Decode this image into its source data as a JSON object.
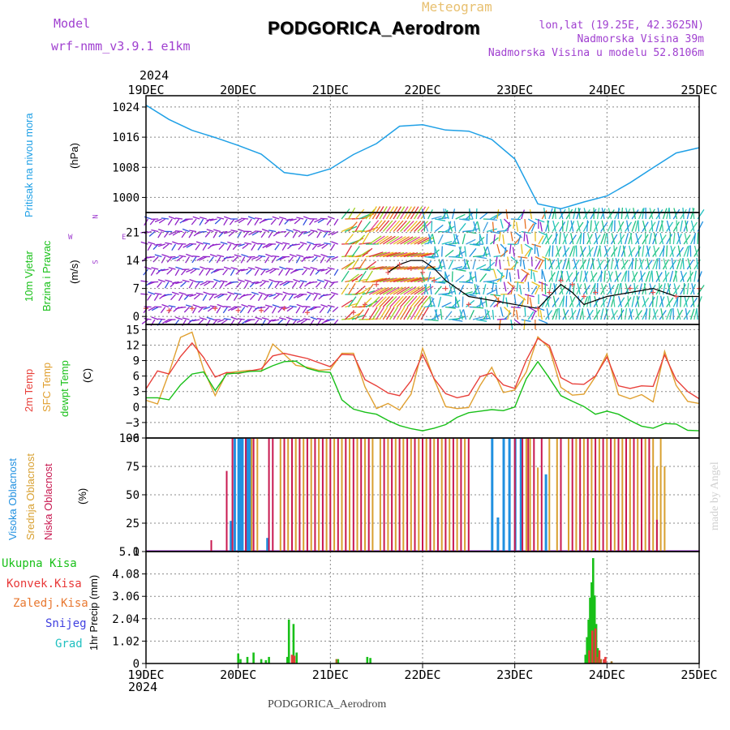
{
  "header": {
    "model_label": "Model",
    "model_value": "wrf-nmm_v3.9.1  e1km",
    "product": "Meteogram",
    "station": "PODGORICA_Aerodrom",
    "lonlat": "lon,lat (19.25E, 42.3625N)",
    "elevation": "Nadmorska Visina 39m",
    "model_elevation": "Nadmorska Visina u modelu 52.8106m"
  },
  "footer": {
    "station": "PODGORICA_Aerodrom"
  },
  "credit": "made by Angel",
  "colors": {
    "pressure": "#1fa0e6",
    "temp2m": "#e8403a",
    "tsfc": "#e0a030",
    "dewpt": "#18c018",
    "cloud_high": "#2090e0",
    "cloud_mid": "#d8a030",
    "cloud_low": "#c81850",
    "precip_total": "#18c018",
    "precip_conv": "#e83838",
    "precip_frozen": "#e87830",
    "precip_snow": "#4040e0",
    "precip_hail": "#20c0c0",
    "model_purple": "#a040d0"
  },
  "chart_data": [
    {
      "type": "line",
      "id": "pressure",
      "ylabel_title": "Pritisak na nivou mora",
      "ylabel_unit": "(hPa)",
      "year": "2024",
      "x_ticks": [
        "19DEC",
        "20DEC",
        "21DEC",
        "22DEC",
        "23DEC",
        "24DEC",
        "25DEC"
      ],
      "ylim": [
        996,
        1027
      ],
      "y_ticks": [
        1000,
        1008,
        1016,
        1024
      ],
      "x_hours": [
        0,
        6,
        12,
        18,
        24,
        30,
        36,
        42,
        48,
        54,
        60,
        66,
        72,
        78,
        84,
        90,
        96,
        102,
        108,
        114,
        120,
        126,
        132,
        138,
        144
      ],
      "values": [
        1024.5,
        1020.7,
        1017.8,
        1015.9,
        1013.8,
        1011.5,
        1006.6,
        1005.8,
        1007.6,
        1011.4,
        1014.3,
        1018.9,
        1019.3,
        1017.9,
        1017.6,
        1015.4,
        1010.2,
        998.3,
        997.0,
        998.8,
        1000.4,
        1003.9,
        1007.9,
        1011.8,
        1013.2
      ]
    },
    {
      "type": "line",
      "id": "wind",
      "ylabel_title": "10m Vjetar",
      "ylabel_title2": "Brzina i Pravac",
      "ylabel_unit": "(m/s)",
      "compass": [
        "N",
        "E",
        "S",
        "W"
      ],
      "ylim": [
        -2,
        26
      ],
      "y_ticks": [
        0,
        7,
        14,
        21
      ],
      "series": [
        {
          "name": "speed",
          "x_hours": [
            63,
            66,
            69,
            72,
            75,
            78,
            81,
            84,
            90,
            96,
            102,
            105,
            108,
            111,
            114,
            117,
            120,
            126,
            132,
            138,
            144
          ],
          "values": [
            11,
            13,
            14,
            14,
            12,
            9,
            7,
            5,
            4,
            3,
            2,
            5,
            8,
            6,
            3,
            4,
            5,
            6,
            7,
            5,
            5
          ]
        }
      ],
      "gust_x_hours": [
        0,
        6,
        12,
        18,
        24,
        30,
        36,
        42,
        54,
        57,
        60,
        63,
        66,
        69,
        72,
        75,
        78,
        84,
        102,
        105,
        108,
        111,
        114,
        117,
        126,
        132,
        138,
        144
      ],
      "gust_values": [
        2,
        1.5,
        2,
        2,
        1.5,
        1.5,
        2,
        1,
        1,
        3,
        8,
        11,
        13,
        12,
        11,
        9,
        7,
        3,
        2,
        6,
        9,
        8,
        5,
        6,
        7,
        6,
        5,
        7
      ]
    },
    {
      "type": "line",
      "id": "temperature",
      "ylabel_lines": [
        "2m Temp",
        "SFC Temp",
        "dewpt Temp"
      ],
      "ylabel_unit": "(C)",
      "ylim": [
        -6,
        16
      ],
      "y_ticks": [
        -6,
        -3,
        0,
        3,
        6,
        9,
        12,
        15
      ],
      "x_hours": [
        0,
        3,
        6,
        9,
        12,
        15,
        18,
        21,
        24,
        27,
        30,
        33,
        36,
        39,
        42,
        45,
        48,
        51,
        54,
        57,
        60,
        63,
        66,
        69,
        72,
        75,
        78,
        81,
        84,
        87,
        90,
        93,
        96,
        99,
        102,
        105,
        108,
        111,
        114,
        117,
        120,
        123,
        126,
        129,
        132,
        135,
        138,
        141,
        144
      ],
      "series": [
        {
          "name": "2m Temp",
          "values": [
            3.5,
            7.0,
            6.4,
            9.8,
            12.4,
            9.6,
            5.8,
            6.7,
            6.5,
            7.0,
            7.4,
            9.9,
            10.4,
            9.9,
            9.4,
            8.6,
            7.8,
            10.2,
            10.1,
            5.3,
            4.1,
            2.7,
            2.2,
            5.1,
            10.2,
            5.5,
            2.6,
            1.8,
            2.3,
            5.9,
            6.6,
            4.3,
            3.6,
            9.1,
            13.3,
            11.9,
            5.7,
            4.5,
            4.4,
            6.0,
            9.7,
            4.1,
            3.6,
            4.1,
            4.0,
            10.1,
            5.3,
            3.0,
            1.6
          ]
        },
        {
          "name": "SFC Temp",
          "values": [
            1.3,
            0.6,
            6.6,
            13.5,
            14.5,
            7.3,
            2.2,
            6.6,
            6.9,
            7.1,
            6.9,
            12.2,
            10.2,
            8.1,
            7.7,
            7.1,
            7.3,
            10.4,
            10.4,
            3.9,
            -0.3,
            0.7,
            -0.6,
            2.5,
            11.4,
            5.4,
            0.1,
            -0.3,
            -0.1,
            4.2,
            7.7,
            2.8,
            3.3,
            6.8,
            13.6,
            11.4,
            3.8,
            2.3,
            2.5,
            5.9,
            10.3,
            2.4,
            1.6,
            2.4,
            1.0,
            10.8,
            4.2,
            1.1,
            0.7
          ]
        },
        {
          "name": "dewpt Temp",
          "values": [
            1.8,
            1.8,
            1.4,
            4.3,
            6.4,
            6.8,
            3.2,
            6.4,
            6.6,
            6.9,
            7.0,
            8.0,
            8.8,
            8.9,
            7.5,
            6.9,
            6.7,
            1.4,
            -0.4,
            -1.0,
            -1.4,
            -2.6,
            -3.6,
            -4.2,
            -4.6,
            -4.1,
            -3.4,
            -2.0,
            -1.1,
            -0.8,
            -0.5,
            -0.7,
            0.0,
            5.5,
            8.8,
            5.6,
            2.2,
            1.1,
            0.1,
            -1.4,
            -0.8,
            -1.4,
            -2.6,
            -3.7,
            -4.1,
            -3.2,
            -3.3,
            -4.5,
            -4.6
          ]
        }
      ]
    },
    {
      "type": "bar",
      "id": "clouds",
      "ylabel_lines": [
        "Visoka Oblacnost",
        "Srednja Oblacnost",
        "Niska Oblacnost"
      ],
      "ylabel_unit": "(%)",
      "ylim": [
        0,
        100
      ],
      "y_ticks": [
        0,
        25,
        50,
        75,
        100
      ],
      "series": [
        {
          "name": "Visoka Oblacnost",
          "x_hours": [
            22,
            23,
            24,
            24.5,
            25,
            26,
            26.5,
            27,
            31.5,
            90,
            91.5,
            93,
            94.5,
            96,
            97.5,
            104
          ],
          "values": [
            27,
            100,
            100,
            100,
            100,
            100,
            100,
            100,
            12,
            100,
            30,
            100,
            100,
            100,
            100,
            68
          ]
        },
        {
          "name": "Srednja Oblacnost",
          "x_hours": [
            27.5,
            29,
            35,
            37,
            39,
            41,
            43,
            45,
            47,
            49,
            51,
            53,
            55,
            57,
            59,
            61,
            63,
            65,
            67,
            69,
            71,
            73,
            75,
            77,
            79,
            81,
            83,
            99,
            100,
            102,
            105,
            107,
            110,
            112,
            114,
            116,
            118,
            120,
            122,
            124,
            126,
            128,
            130,
            132,
            133,
            134,
            135
          ],
          "values": [
            100,
            100,
            100,
            100,
            100,
            100,
            100,
            100,
            100,
            100,
            100,
            100,
            100,
            100,
            100,
            100,
            100,
            100,
            100,
            100,
            100,
            100,
            100,
            100,
            100,
            100,
            100,
            100,
            100,
            74,
            100,
            100,
            100,
            100,
            100,
            100,
            100,
            100,
            100,
            100,
            100,
            100,
            100,
            100,
            75,
            100,
            75
          ]
        },
        {
          "name": "Niska Oblacnost",
          "x_hours": [
            17,
            21,
            22.5,
            26,
            28,
            32,
            33,
            36,
            38,
            40,
            42,
            44,
            46,
            48,
            50,
            52,
            54,
            56,
            58,
            62,
            64,
            66,
            68,
            70,
            72,
            74,
            76,
            78,
            80,
            82,
            84,
            96,
            98,
            99.5,
            101,
            103,
            108,
            111,
            113,
            115,
            117,
            119,
            121,
            123,
            125,
            127,
            129,
            131,
            133
          ],
          "values": [
            10,
            71,
            100,
            100,
            100,
            100,
            100,
            100,
            100,
            100,
            100,
            100,
            100,
            100,
            100,
            100,
            100,
            100,
            100,
            100,
            100,
            100,
            100,
            100,
            100,
            100,
            100,
            100,
            100,
            100,
            100,
            100,
            100,
            100,
            100,
            100,
            100,
            100,
            100,
            100,
            100,
            100,
            100,
            100,
            100,
            100,
            100,
            100,
            28
          ]
        }
      ]
    },
    {
      "type": "bar",
      "id": "precip",
      "ylabel_legend": [
        "Ukupna Kisa",
        "Konvek.Kisa",
        "Zaledj.Kisa",
        "Snijeg",
        "Grad"
      ],
      "ylabel_unit": "1hr Precip (mm)",
      "ylim": [
        0,
        5.1
      ],
      "y_ticks": [
        0,
        1.02,
        2.04,
        3.06,
        4.08,
        5.1
      ],
      "series": [
        {
          "name": "Ukupna Kisa",
          "x_hours": [
            24,
            24.6,
            26.4,
            28,
            30,
            31.2,
            32,
            36.8,
            37.2,
            38.4,
            39.2,
            50,
            57.6,
            58.4,
            114.4,
            114.8,
            115.2,
            115.6,
            116,
            116.4,
            116.8,
            117.2,
            117.6
          ],
          "values": [
            0.45,
            0.2,
            0.3,
            0.5,
            0.2,
            0.15,
            0.3,
            0.3,
            2.0,
            1.8,
            0.5,
            0.2,
            0.3,
            0.25,
            0.4,
            1.2,
            2.0,
            3.0,
            3.7,
            4.8,
            3.1,
            1.8,
            0.7
          ]
        },
        {
          "name": "Konvek.Kisa",
          "x_hours": [
            38,
            38.6,
            115.4,
            116.2,
            117,
            118,
            119.2,
            119.6
          ],
          "values": [
            0.4,
            0.35,
            0.6,
            1.5,
            1.6,
            0.6,
            0.2,
            0.3
          ]
        },
        {
          "name": "Zaledj.Kisa",
          "x_hours": [
            49.6,
            117.4,
            118.4,
            121.2
          ],
          "values": [
            0.2,
            0.3,
            0.2,
            0.1
          ]
        }
      ]
    }
  ]
}
